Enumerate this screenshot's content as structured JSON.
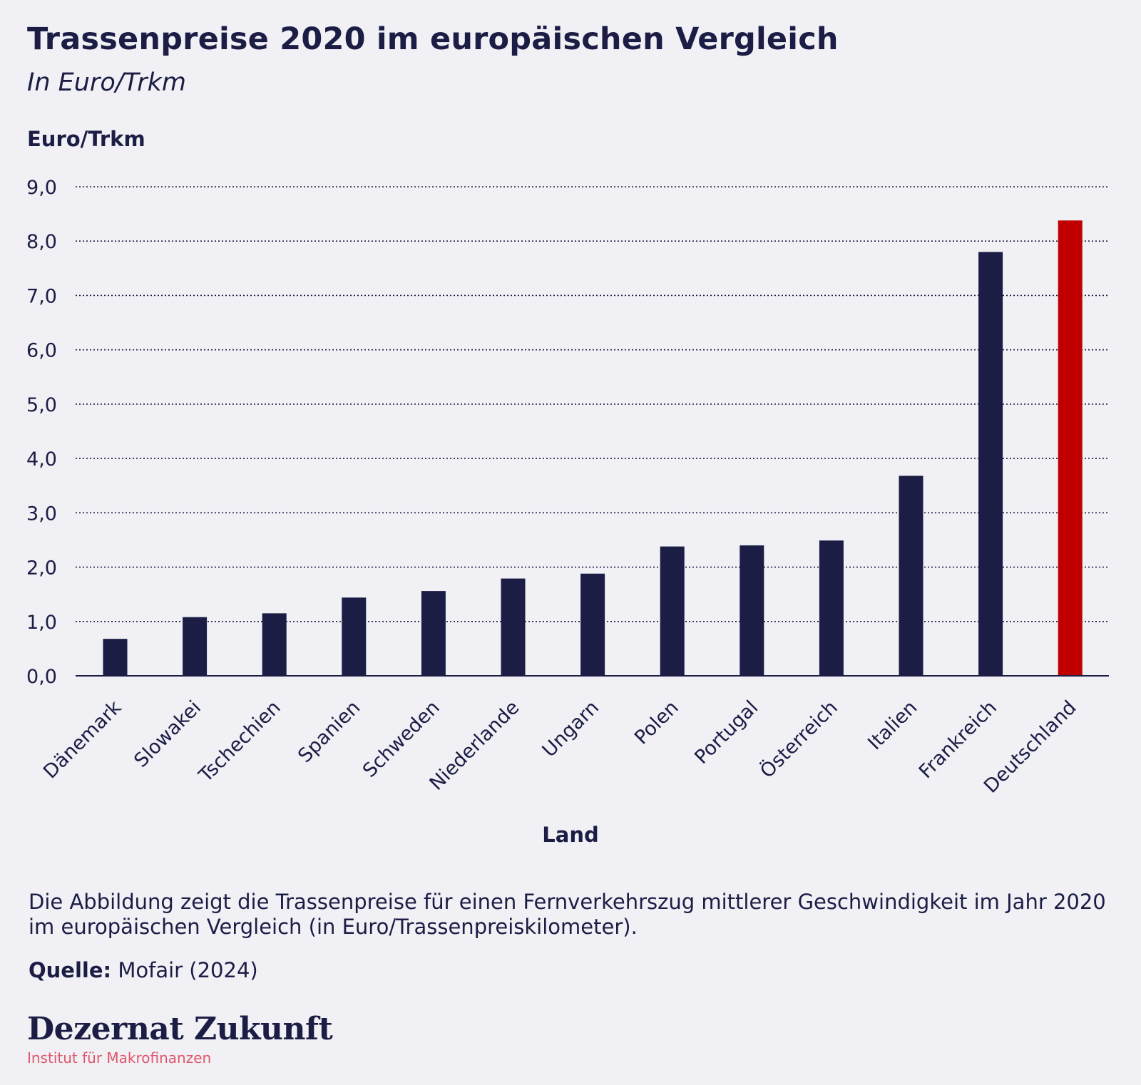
{
  "header": {
    "title": "Trassenpreise 2020 im europäischen Vergleich",
    "subtitle": "In Euro/Trkm"
  },
  "chart_data": {
    "type": "bar",
    "ylabel": "Euro/Trkm",
    "xlabel": "Land",
    "ylim": [
      0,
      9
    ],
    "yticks": [
      "0,0",
      "1,0",
      "2,0",
      "3,0",
      "4,0",
      "5,0",
      "6,0",
      "7,0",
      "8,0",
      "9,0"
    ],
    "grid": true,
    "categories": [
      "Dänemark",
      "Slowakei",
      "Tschechien",
      "Spanien",
      "Schweden",
      "Niederlande",
      "Ungarn",
      "Polen",
      "Portugal",
      "Österreich",
      "Italien",
      "Frankreich",
      "Deutschland"
    ],
    "values": [
      0.68,
      1.08,
      1.15,
      1.44,
      1.56,
      1.79,
      1.88,
      2.38,
      2.4,
      2.49,
      3.68,
      7.8,
      8.38
    ],
    "bar_color": "#1b1d45",
    "highlight_color": "#c00000",
    "highlight_category": "Deutschland"
  },
  "footer": {
    "caption": "Die Abbildung zeigt die Trassenpreise für einen Fernverkehrszug mittlerer Geschwindigkeit im Jahr 2020 im europäischen Vergleich (in Euro/Trassenpreiskilometer).",
    "source_label": "Quelle:",
    "source_value": "Mofair (2024)",
    "logo_text": "Dezernat Zukunft",
    "logo_subtitle": "Institut für Makrofinanzen"
  }
}
